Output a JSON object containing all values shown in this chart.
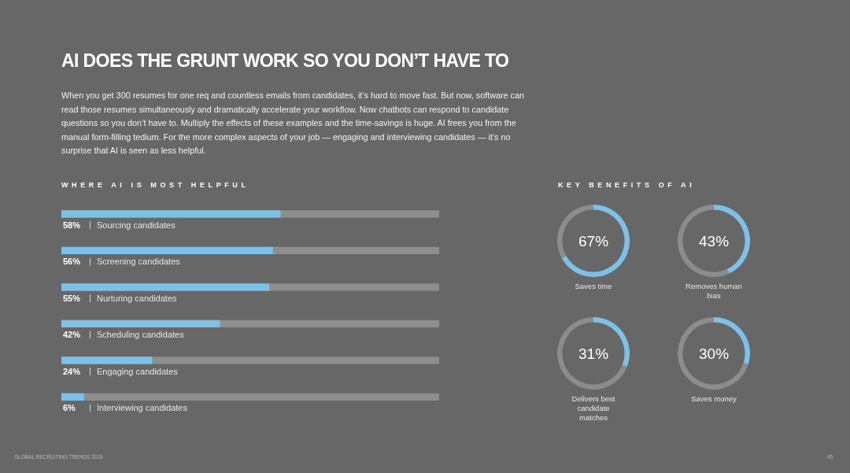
{
  "chart_data": [
    {
      "type": "other",
      "title": "AI DOES THE GRUNT WORK SO YOU DON’T HAVE TO",
      "subtitle": "When you get 300 resumes for one req and countless emails from candidates, it’s hard to move fast. But now, software can read those resumes simultaneously and dramatically accelerate your workflow. Now chatbots can respond to candidate questions so you don’t have to. Multiply the effects of these examples and the time-savings is huge. AI frees you from the manual form-filling tedium. For the more complex aspects of your job — engaging and interviewing candidates — it’s no surprise that AI is seen as less helpful.",
      "annotations": [
        "GLOBAL RECRUITING TRENDS 2018",
        "45"
      ]
    },
    {
      "type": "bar",
      "orientation": "horizontal",
      "title": "WHERE AI IS MOST HELPFUL",
      "categories": [
        "Sourcing candidates",
        "Screening candidates",
        "Nurturing candidates",
        "Scheduling candidates",
        "Engaging candidates",
        "Interviewing candidates"
      ],
      "values": [
        58,
        56,
        55,
        42,
        24,
        6
      ],
      "value_labels": [
        "58%",
        "56%",
        "55%",
        "42%",
        "24%",
        "6%"
      ],
      "color": "#7dc1e8",
      "xlim": [
        0,
        100
      ],
      "tick_labels": false
    },
    {
      "type": "other",
      "title": "KEY BENEFITS OF AI"
    },
    {
      "type": "donut",
      "title": "Saves time",
      "annotations": [
        "67%"
      ],
      "categories": [
        null,
        null
      ],
      "values": [
        67,
        33
      ],
      "colors": [
        "#7dc1e8",
        "#8c8c8c"
      ]
    },
    {
      "type": "donut",
      "title": "Removes human bias",
      "annotations": [
        "43%"
      ],
      "categories": [
        null,
        null
      ],
      "values": [
        43,
        57
      ],
      "colors": [
        "#7dc1e8",
        "#8c8c8c"
      ]
    },
    {
      "type": "donut",
      "title": "Delivers best candidate matches",
      "annotations": [
        "31%"
      ],
      "categories": [
        null,
        null
      ],
      "values": [
        31,
        69
      ],
      "colors": [
        "#7dc1e8",
        "#8c8c8c"
      ]
    },
    {
      "type": "donut",
      "title": "Saves money",
      "annotations": [
        "30%"
      ],
      "categories": [
        null,
        null
      ],
      "values": [
        30,
        70
      ],
      "colors": [
        "#7dc1e8",
        "#8c8c8c"
      ]
    }
  ]
}
